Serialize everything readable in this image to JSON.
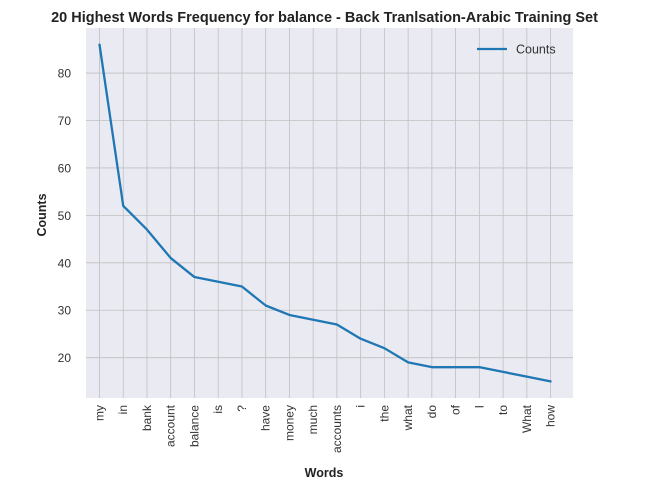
{
  "chart_data": {
    "type": "line",
    "title": "20 Highest Words Frequency for balance - Back Tranlsation-Arabic Training Set",
    "xlabel": "Words",
    "ylabel": "Counts",
    "categories": [
      "my",
      "in",
      "bank",
      "account",
      "balance",
      "is",
      "?",
      "have",
      "money",
      "much",
      "accounts",
      "i",
      "the",
      "what",
      "do",
      "of",
      "I",
      "to",
      "What",
      "how"
    ],
    "series": [
      {
        "name": "Counts",
        "color": "#1f77b4",
        "values": [
          86,
          52,
          47,
          41,
          37,
          36,
          35,
          31,
          29,
          28,
          27,
          24,
          22,
          19,
          18,
          18,
          18,
          17,
          16,
          15
        ]
      }
    ],
    "yticks": [
      20,
      30,
      40,
      50,
      60,
      70,
      80
    ],
    "ylim": [
      11.5,
      89.5
    ],
    "grid": true,
    "legend_position": "top-right",
    "colors": {
      "plot_background": "#eaeaf2",
      "grid": "#c0c0c0",
      "line": "#1f77b4"
    }
  }
}
